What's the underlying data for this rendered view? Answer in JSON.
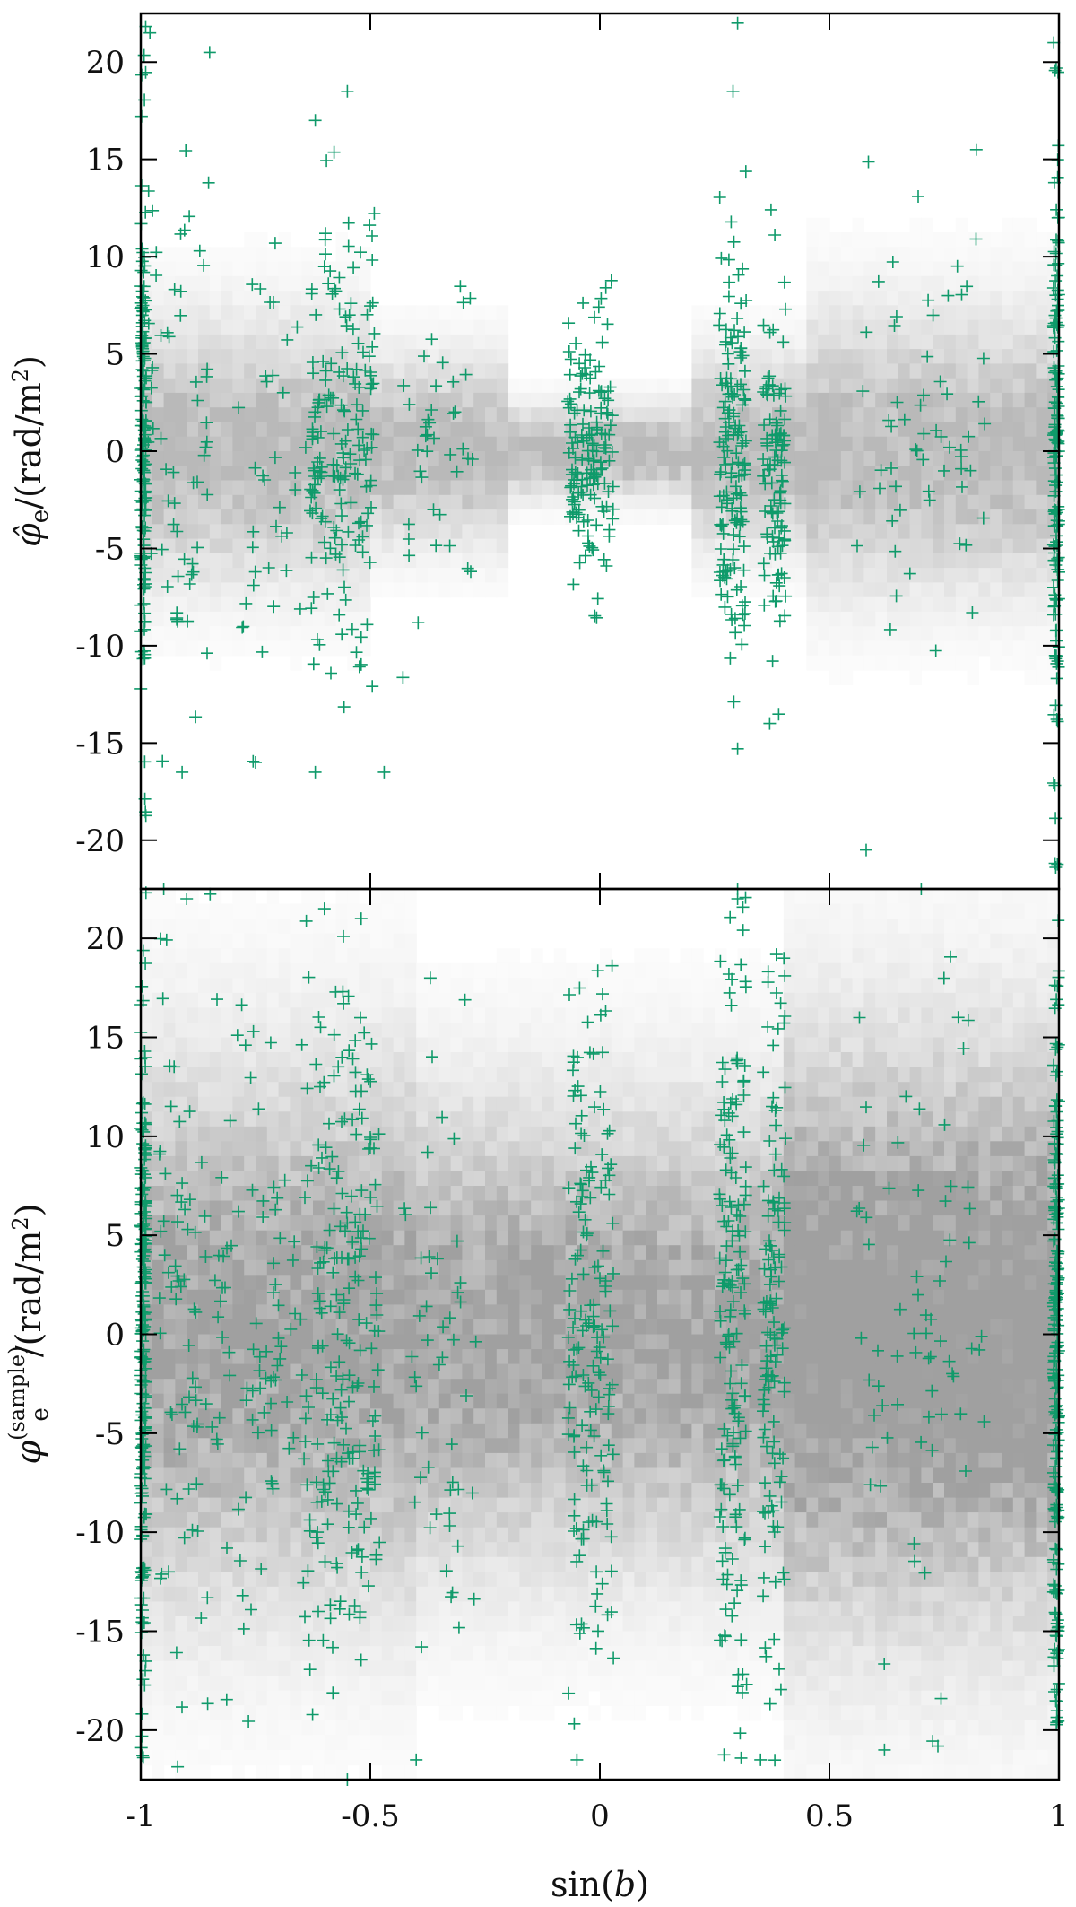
{
  "chart_data": [
    {
      "type": "scatter",
      "panel": "top",
      "ylabel": "φ̂e/(rad/m²)",
      "xlim": [
        -1,
        1
      ],
      "ylim": [
        -22.5,
        22.5
      ],
      "yticks": [
        20,
        15,
        10,
        5,
        0,
        -5,
        -10,
        -15,
        -20
      ],
      "ytick_labels": [
        "20",
        "15",
        "10",
        "5",
        "0",
        "-5",
        "-10",
        "-15",
        "-20"
      ],
      "xticks": [
        -1,
        -0.5,
        0,
        0.5,
        1
      ],
      "grid": false,
      "background_density": {
        "description": "grey 2D histogram",
        "bands": [
          {
            "x": [
              -1,
              -0.5
            ],
            "y_center": 0,
            "y_halfwidth": 7
          },
          {
            "x": [
              -0.5,
              -0.2
            ],
            "y_center": 0,
            "y_halfwidth": 5
          },
          {
            "x": [
              -0.2,
              0.2
            ],
            "y_center": 0,
            "y_halfwidth": 2.5
          },
          {
            "x": [
              0.2,
              0.45
            ],
            "y_center": 0,
            "y_halfwidth": 5
          },
          {
            "x": [
              0.45,
              1
            ],
            "y_center": 0,
            "y_halfwidth": 7.5
          }
        ]
      },
      "series": [
        {
          "marker": "plus",
          "color": "#0f9a6a",
          "clusters": [
            {
              "x_center": -1,
              "x_spread": 0.012,
              "y_sd": 7.5,
              "count": 160
            },
            {
              "x_center": -0.92,
              "x_spread": 0.07,
              "y_sd": 7,
              "count": 60
            },
            {
              "x_center": -0.7,
              "x_spread": 0.09,
              "y_sd": 6,
              "count": 45
            },
            {
              "x_center": -0.56,
              "x_spread": 0.07,
              "y_sd": 5.5,
              "count": 170
            },
            {
              "x_center": -0.35,
              "x_spread": 0.08,
              "y_sd": 4.5,
              "count": 40
            },
            {
              "x_center": -0.02,
              "x_spread": 0.05,
              "y_sd": 3.5,
              "count": 150
            },
            {
              "x_center": 0.29,
              "x_spread": 0.03,
              "y_sd": 5.5,
              "count": 150
            },
            {
              "x_center": 0.38,
              "x_spread": 0.025,
              "y_sd": 5,
              "count": 110
            },
            {
              "x_center": 0.7,
              "x_spread": 0.14,
              "y_sd": 6,
              "count": 60
            },
            {
              "x_center": 1,
              "x_spread": 0.012,
              "y_sd": 8,
              "count": 160
            }
          ],
          "outliers": [
            [
              0.3,
              22
            ],
            [
              0.29,
              18.5
            ],
            [
              -0.85,
              20.5
            ],
            [
              -0.62,
              17
            ],
            [
              0.58,
              -20.5
            ],
            [
              0.3,
              -22.5
            ],
            [
              -0.98,
              21.5
            ],
            [
              -0.55,
              18.5
            ],
            [
              0.82,
              15.5
            ],
            [
              -0.62,
              -16.5
            ],
            [
              -0.75,
              -16
            ],
            [
              -0.91,
              -16.5
            ],
            [
              0.37,
              -14
            ],
            [
              0.3,
              -15.3
            ],
            [
              -0.47,
              -16.5
            ]
          ]
        }
      ]
    },
    {
      "type": "scatter",
      "panel": "bottom",
      "xlabel": "sin(b)",
      "ylabel": "φe(sample)/(rad/m²)",
      "xlim": [
        -1,
        1
      ],
      "ylim": [
        -22.5,
        22.5
      ],
      "yticks": [
        20,
        15,
        10,
        5,
        0,
        -5,
        -10,
        -15,
        -20
      ],
      "ytick_labels": [
        "20",
        "15",
        "10",
        "5",
        "0",
        "-5",
        "-10",
        "-15",
        "-20"
      ],
      "xticks": [
        -1,
        -0.5,
        0,
        0.5,
        1
      ],
      "xtick_labels": [
        "-1",
        "-0.5",
        "0",
        "0.5",
        "1"
      ],
      "grid": false,
      "background_density": {
        "description": "broad grey 2D histogram, darker toward x > 0.4",
        "bands": [
          {
            "x": [
              -1,
              -0.4
            ],
            "y_center": 0,
            "y_halfwidth": 14
          },
          {
            "x": [
              -0.4,
              0.4
            ],
            "y_center": 0,
            "y_halfwidth": 12
          },
          {
            "x": [
              0.4,
              1
            ],
            "y_center": 0,
            "y_halfwidth": 15
          }
        ]
      },
      "series": [
        {
          "marker": "plus",
          "color": "#0f9a6a",
          "clusters": [
            {
              "x_center": -1,
              "x_spread": 0.012,
              "y_sd": 10,
              "count": 220
            },
            {
              "x_center": -0.88,
              "x_spread": 0.08,
              "y_sd": 9,
              "count": 90
            },
            {
              "x_center": -0.7,
              "x_spread": 0.1,
              "y_sd": 8.5,
              "count": 90
            },
            {
              "x_center": -0.55,
              "x_spread": 0.07,
              "y_sd": 9,
              "count": 200
            },
            {
              "x_center": -0.35,
              "x_spread": 0.08,
              "y_sd": 8,
              "count": 50
            },
            {
              "x_center": -0.02,
              "x_spread": 0.05,
              "y_sd": 9,
              "count": 170
            },
            {
              "x_center": 0.29,
              "x_spread": 0.03,
              "y_sd": 10,
              "count": 170
            },
            {
              "x_center": 0.38,
              "x_spread": 0.025,
              "y_sd": 9,
              "count": 130
            },
            {
              "x_center": 0.7,
              "x_spread": 0.14,
              "y_sd": 8.5,
              "count": 70
            },
            {
              "x_center": 1,
              "x_spread": 0.012,
              "y_sd": 10,
              "count": 220
            }
          ],
          "outliers": [
            [
              -0.95,
              22.5
            ],
            [
              -0.9,
              22
            ],
            [
              -0.6,
              21.5
            ],
            [
              -0.52,
              21
            ],
            [
              0,
              22.5
            ],
            [
              0.3,
              22
            ],
            [
              0.7,
              22.5
            ],
            [
              -0.55,
              -22.5
            ],
            [
              -0.4,
              -21.5
            ],
            [
              0.35,
              -21.5
            ],
            [
              0.62,
              -21
            ],
            [
              -0.05,
              -21.5
            ]
          ]
        }
      ]
    }
  ]
}
